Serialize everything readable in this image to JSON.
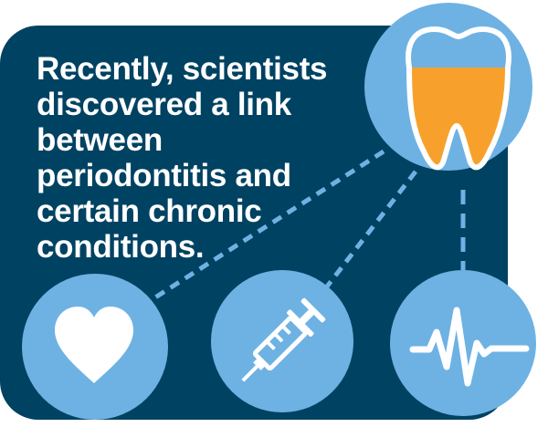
{
  "headline": {
    "lines": [
      "Recently, scientists",
      "discovered a link",
      "between",
      "periodontitis and",
      "certain chronic",
      "conditions."
    ]
  },
  "colors": {
    "panel": "#004262",
    "circle": "#6eb2e4",
    "tooth_fill": "#f7a12c",
    "tooth_outline": "#ffffff",
    "icon": "#ffffff",
    "connector": "#6eb2e4"
  },
  "icons": {
    "tooth": "tooth-icon",
    "heart": "heart-icon",
    "syringe": "syringe-icon",
    "pulse": "pulse-icon"
  }
}
